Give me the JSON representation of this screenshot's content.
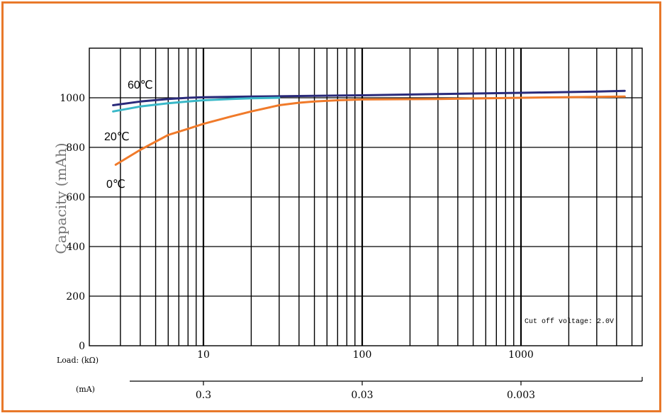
{
  "chart_data": {
    "type": "line",
    "ylabel": "Capacity (mAh)",
    "y_ticks": [
      "0",
      "200",
      "400",
      "600",
      "800",
      "1000"
    ],
    "ylim": [
      0,
      1200
    ],
    "x_scale": "log",
    "x_primary_label": "Load: (kΩ)",
    "x_primary_ticks": [
      "10",
      "100",
      "1000"
    ],
    "x_primary_values": [
      10,
      100,
      1000
    ],
    "xlim_kohm": [
      2.5,
      5000
    ],
    "x_secondary_label": "(mA)",
    "x_secondary_ticks": [
      "0.3",
      "0.03",
      "0.003"
    ],
    "annotation": "Cut off voltage: 2.0V",
    "grid": true,
    "series": [
      {
        "name": "60℃",
        "color": "#2a2a7a",
        "x": [
          2.7,
          4,
          6,
          8,
          10,
          20,
          50,
          100,
          300,
          1000,
          3000,
          4500
        ],
        "y": [
          970,
          985,
          995,
          1000,
          1002,
          1005,
          1008,
          1010,
          1015,
          1020,
          1025,
          1028
        ]
      },
      {
        "name": "20℃",
        "color": "#3ab8c8",
        "x": [
          2.7,
          4,
          6,
          8,
          10,
          15,
          20,
          30
        ],
        "y": [
          945,
          965,
          978,
          985,
          990,
          995,
          998,
          1000
        ]
      },
      {
        "name": "0℃",
        "color": "#f07a2a",
        "x": [
          2.8,
          4,
          6,
          8,
          10,
          15,
          20,
          30,
          40,
          50,
          70,
          100,
          300,
          1000,
          4500
        ],
        "y": [
          730,
          790,
          850,
          875,
          895,
          925,
          945,
          970,
          980,
          985,
          990,
          993,
          995,
          1000,
          1005
        ]
      }
    ],
    "series_label_text": [
      "60℃",
      "20℃",
      "0℃"
    ]
  }
}
